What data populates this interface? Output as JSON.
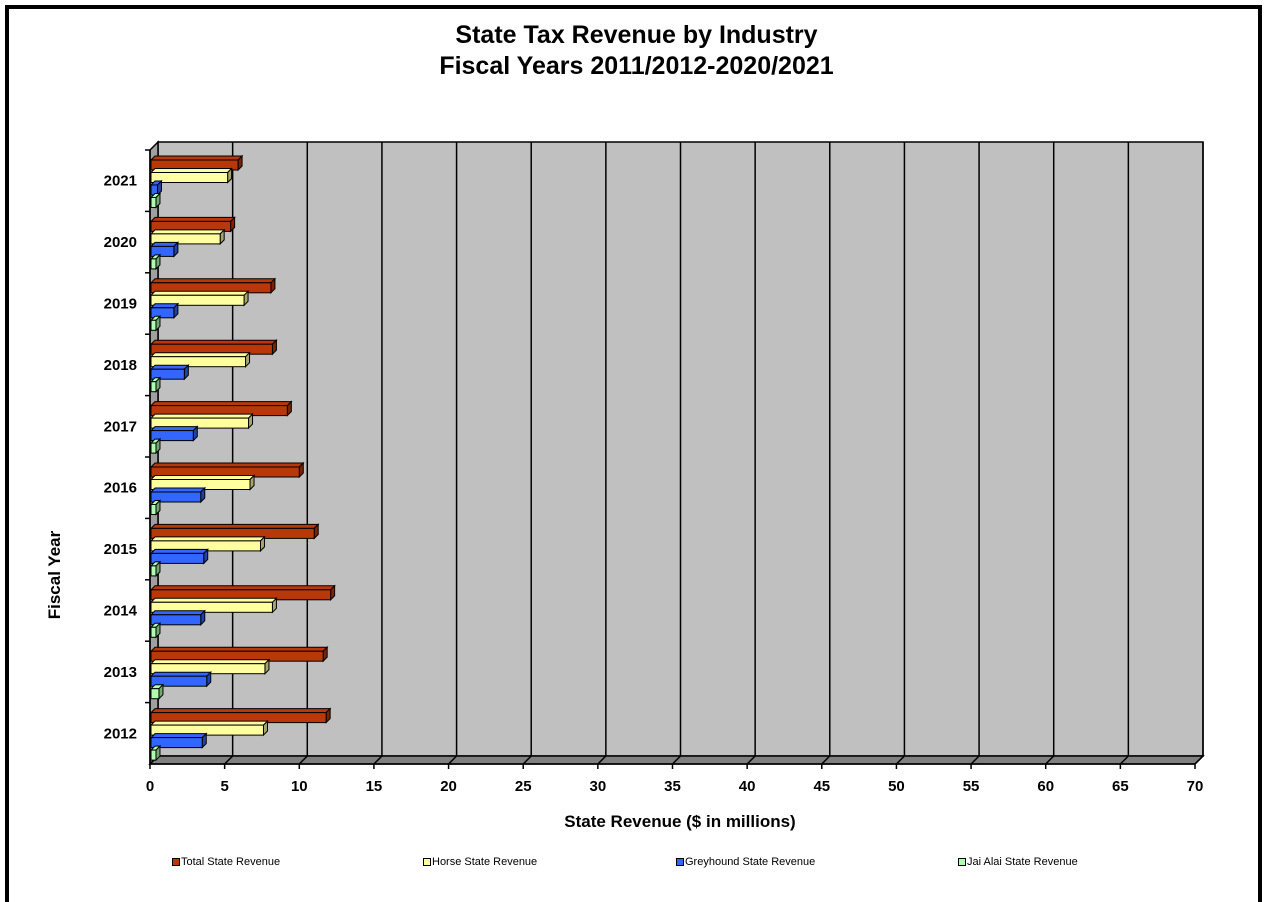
{
  "chart_data": {
    "type": "bar",
    "orientation": "horizontal",
    "title": "State Tax Revenue by Industry",
    "subtitle": "Fiscal Years 2011/2012-2020/2021",
    "xlabel": "State Revenue ($ in millions)",
    "ylabel": "Fiscal Year",
    "xlim": [
      0,
      70
    ],
    "xticks": [
      "0",
      "5",
      "10",
      "15",
      "20",
      "25",
      "30",
      "35",
      "40",
      "45",
      "50",
      "55",
      "60",
      "65",
      "70"
    ],
    "grid": true,
    "legend_position": "bottom",
    "categories": [
      "2012",
      "2013",
      "2014",
      "2015",
      "2016",
      "2017",
      "2018",
      "2019",
      "2020",
      "2021"
    ],
    "series": [
      {
        "name": "Total State Revenue",
        "color": "#B8380A",
        "values": [
          11.8,
          11.6,
          12.1,
          11.0,
          10.0,
          9.2,
          8.2,
          8.1,
          5.4,
          5.9
        ]
      },
      {
        "name": "Horse State Revenue",
        "color": "#FFFFA0",
        "values": [
          7.6,
          7.7,
          8.2,
          7.4,
          6.7,
          6.6,
          6.4,
          6.3,
          4.7,
          5.2
        ]
      },
      {
        "name": "Greyhound State Revenue",
        "color": "#3366FF",
        "values": [
          3.5,
          3.8,
          3.4,
          3.6,
          3.4,
          2.9,
          2.3,
          1.6,
          1.6,
          0.5
        ]
      },
      {
        "name": "Jai Alai State Revenue",
        "color": "#B0FFB0",
        "values": [
          0.4,
          0.6,
          0.4,
          0.4,
          0.4,
          0.4,
          0.4,
          0.4,
          0.4,
          0.4
        ]
      }
    ]
  }
}
